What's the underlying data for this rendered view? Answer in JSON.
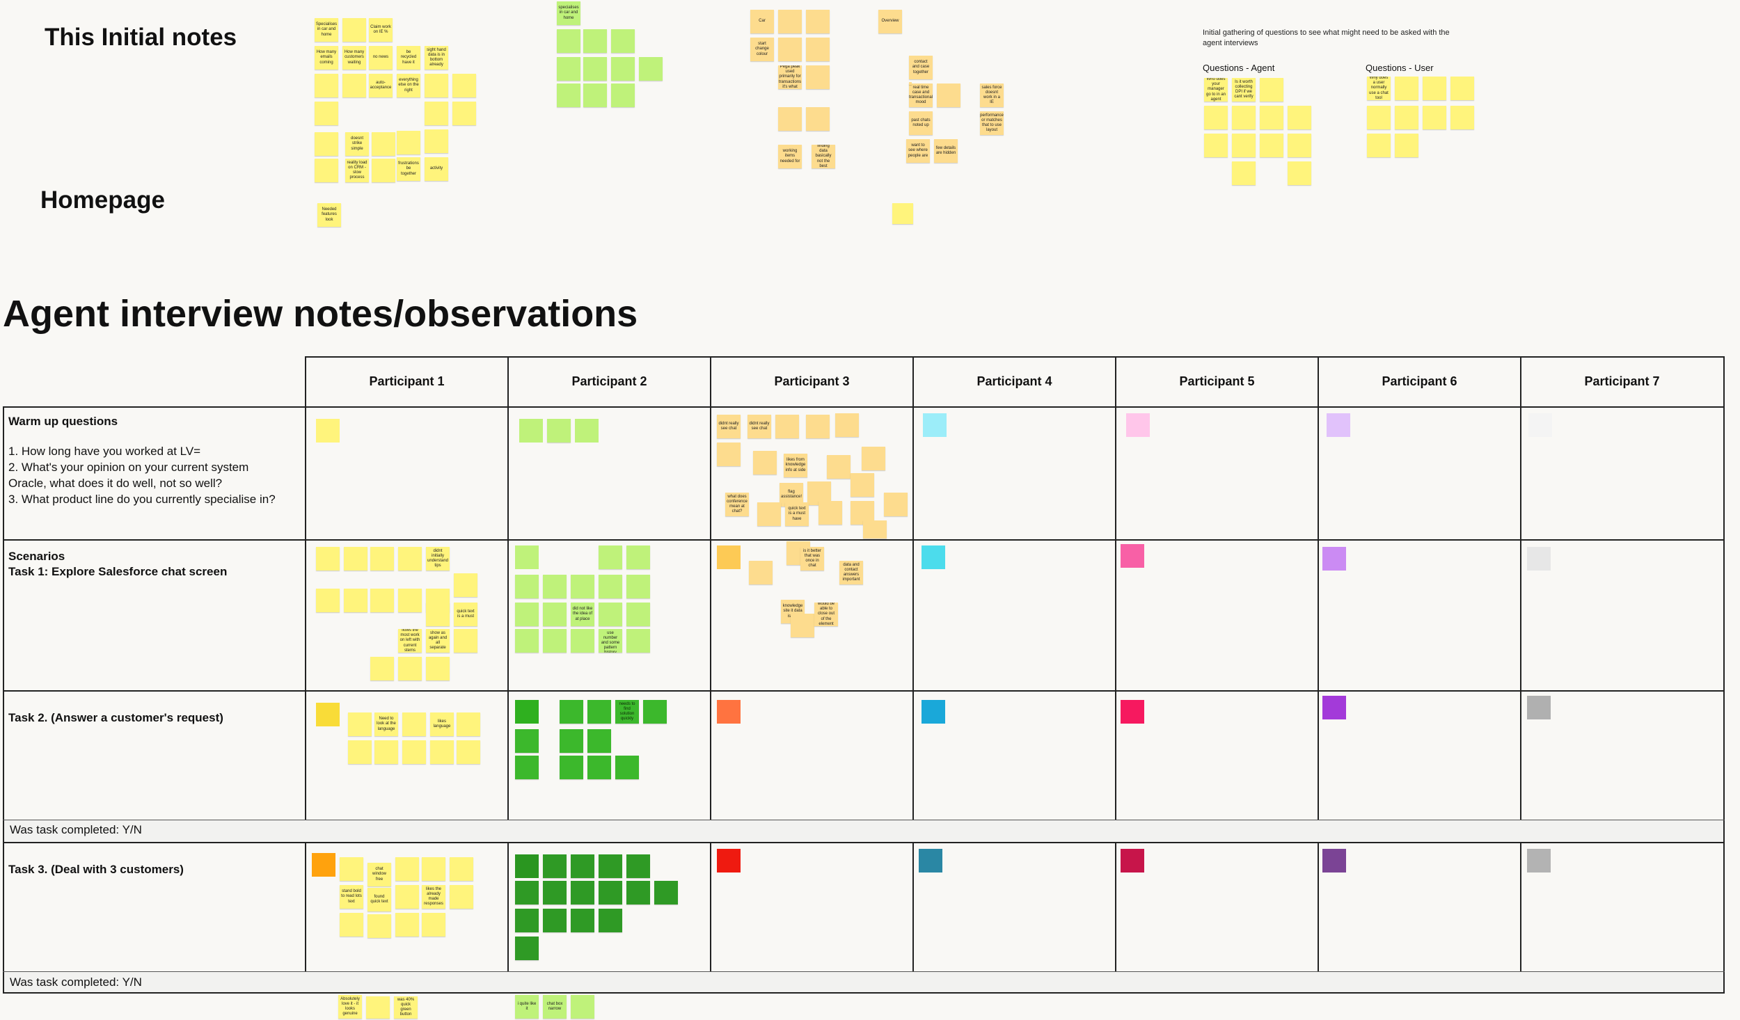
{
  "titles": {
    "initial_notes": "This Initial notes",
    "homepage": "Homepage",
    "agent_interview": "Agent interview notes/observations"
  },
  "intro_text": "Initial gathering of questions to see what might need to be asked with the agent interviews",
  "question_headers": {
    "agent": "Questions - Agent",
    "user": "Questions - User"
  },
  "top_notes": {
    "n1": "Specialises in car and home",
    "n2": "How many emails coming",
    "n3": "Claim work on IE %",
    "n4": "How many customers waiting",
    "n5": "no news",
    "n6": "be recycled have it",
    "n7": "sight hand data is in bottom already",
    "n8": "auto-acceptance",
    "n9": "everything else on the right",
    "n10": "doesnt strike simple",
    "n11": "reality load on CRM - slow process",
    "n12": "frustrations be together",
    "n13": "activity",
    "n14": "Needed features look",
    "g1": "specialises in car and home",
    "o1": "Car",
    "o2": "start change colour",
    "o3": "Overview",
    "o4": "contact and case together",
    "o5": "real time case and transactional mood",
    "o6": "past chats noted up",
    "o7": "want to see where people are",
    "o8": "few details are hidden",
    "o9": "sales force doesnt work in a IE",
    "o10": "performance or matches that to use layout",
    "o11": "working items needed for",
    "o12": "finding data basically not the best",
    "o13": "Pega peak used primarily for transactions it's what",
    "qa1": "Who does your manager go to in an agent",
    "qa2": "Is it worth collecting DPI if we cant verify",
    "qu1": "Why does a user normally use a chat tool"
  },
  "participants": [
    "Participant 1",
    "Participant 2",
    "Participant 3",
    "Participant 4",
    "Participant 5",
    "Participant 6",
    "Participant 7"
  ],
  "rows": {
    "warmup_title": "Warm up questions",
    "warmup_body": "1. How long have you worked at LV=\n2. What's your opinion on your current system\nOracle, what does it do well, not so well?\n3. What product line do you currently specialise in?",
    "scenarios_title": "Scenarios",
    "task1_title": "Task 1: Explore Salesforce chat screen",
    "task2_title": "Task 2. (Answer a customer's request)",
    "task3_title": "Task 3. (Deal with 3 customers)",
    "completed": "Was task completed: Y/N"
  },
  "grid_notes": {
    "p3a": "didnt really see chat",
    "p3b": "didnt really see chat",
    "p3c": "likes from knowledge info at side",
    "p3d": "flag assistance!",
    "p3e": "quick text is a must have",
    "p3f": "what does conference mean at chat?",
    "p3g": "data and contact answers important",
    "p3h": "is it better that was once in chat",
    "p3i": "knowledge site it data is not",
    "p3j": "would be able to close out of the element",
    "p1a": "didnt initially understand tips",
    "p1b": "quick text is a must",
    "p1c": "flows the most work on left with current stems",
    "p1d": "show as again and all separate",
    "p1e": "Need to look at the language",
    "p1f": "likes language",
    "p1g": "chat window free",
    "p1h": "found quick text",
    "p1i": "likes the already made responses",
    "p1j": "stand bold to read lots text",
    "p2a": "did not like the idea of at place",
    "p2b": "wouldn't use number and some pattern history",
    "p2c": "needs to find solution quickly",
    "p2d": "was 40% quick green button",
    "p2e": "i quite like it",
    "p2f": "chat box narrow",
    "bottom1": "Absolutely love it - it looks genuine"
  },
  "colors": {
    "p1": "#fff47c",
    "p2": "#bff27a",
    "p3": "#fdd07a",
    "p4": "#9cedf9",
    "p5": "#ffc6ea",
    "p6": "#e1c2fb",
    "p7": "#f4f4f4"
  }
}
